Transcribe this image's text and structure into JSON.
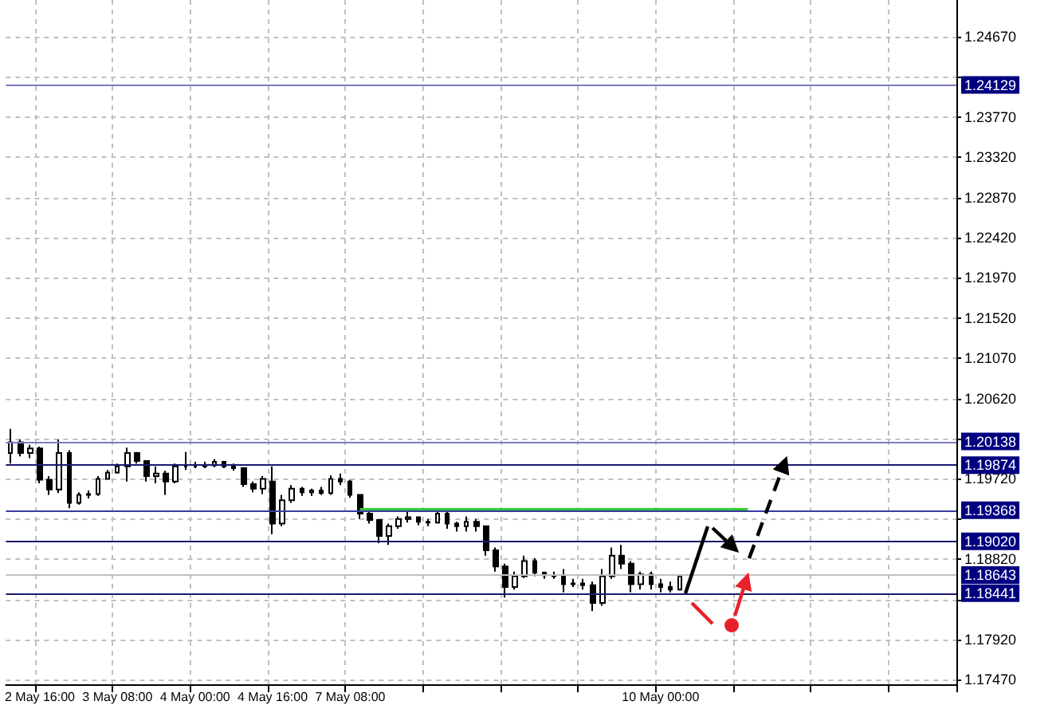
{
  "chart_data": {
    "type": "candlestick",
    "categories": [
      null,
      null,
      null,
      "2 May 16:00",
      null,
      null,
      null,
      null,
      null,
      null,
      null,
      "3 May 08:00",
      null,
      null,
      null,
      null,
      null,
      null,
      null,
      "4 May 00:00",
      null,
      null,
      null,
      null,
      null,
      null,
      null,
      "4 May 16:00",
      null,
      null,
      null,
      null,
      null,
      null,
      null,
      "7 May 08:00",
      null,
      null,
      null,
      null,
      null,
      null,
      null,
      null,
      null,
      null,
      null,
      null,
      null,
      null,
      null,
      null,
      null,
      null,
      null,
      null,
      null,
      null,
      null,
      null,
      null,
      null,
      null,
      null,
      null,
      null,
      null,
      "10 May 00:00",
      null,
      null,
      null,
      null,
      null,
      null,
      null,
      null,
      null,
      null,
      null,
      null,
      null,
      null,
      null,
      null,
      null,
      null,
      null,
      null,
      null,
      null,
      null,
      null,
      null,
      null,
      null,
      null,
      null,
      null
    ],
    "series": [
      {
        "type": "candlestick",
        "color": "#000000",
        "ohlc": [
          [
            1.2001,
            1.2028,
            1.1989,
            1.2013
          ],
          [
            1.2013,
            1.2016,
            1.1997,
            1.2001
          ],
          [
            1.2001,
            1.201,
            1.1995,
            1.2006
          ],
          [
            1.2006,
            1.2008,
            1.1967,
            1.1971
          ],
          [
            1.1971,
            1.1975,
            1.1954,
            1.196
          ],
          [
            1.196,
            1.2016,
            1.1956,
            1.2001
          ],
          [
            1.2001,
            1.2004,
            1.1939,
            1.1945
          ],
          [
            1.1945,
            1.1957,
            1.1943,
            1.1954
          ],
          [
            1.1954,
            1.1959,
            1.195,
            1.1955
          ],
          [
            1.1955,
            1.1975,
            1.1953,
            1.1972
          ],
          [
            1.1972,
            1.1982,
            1.1971,
            1.1979
          ],
          [
            1.1979,
            1.1989,
            1.1978,
            1.1986
          ],
          [
            1.1986,
            1.2007,
            1.1969,
            1.2001
          ],
          [
            1.2001,
            1.2002,
            1.1989,
            1.1992
          ],
          [
            1.1992,
            1.1992,
            1.1969,
            1.1975
          ],
          [
            1.1975,
            1.1986,
            1.1967,
            1.1978
          ],
          [
            1.1978,
            1.1981,
            1.1954,
            1.1969
          ],
          [
            1.1969,
            1.1989,
            1.1967,
            1.1986
          ],
          [
            1.1986,
            1.2002,
            1.1982,
            1.1986
          ],
          [
            1.1986,
            1.1991,
            1.1984,
            1.1986
          ],
          [
            1.1986,
            1.1991,
            1.1984,
            1.1987
          ],
          [
            1.1987,
            1.1994,
            1.1985,
            1.1991
          ],
          [
            1.1991,
            1.1992,
            1.1984,
            1.1986
          ],
          [
            1.1986,
            1.1989,
            1.1981,
            1.1984
          ],
          [
            1.1984,
            1.1985,
            1.1963,
            1.1966
          ],
          [
            1.1966,
            1.1969,
            1.1957,
            1.1961
          ],
          [
            1.1961,
            1.1975,
            1.1955,
            1.1972
          ],
          [
            1.1969,
            1.1986,
            1.191,
            1.1922
          ],
          [
            1.1922,
            1.1954,
            1.1919,
            1.1948
          ],
          [
            1.1948,
            1.1965,
            1.1945,
            1.1961
          ],
          [
            1.1961,
            1.1963,
            1.1953,
            1.1957
          ],
          [
            1.1957,
            1.1961,
            1.1953,
            1.1959
          ],
          [
            1.1959,
            1.1963,
            1.1954,
            1.1956
          ],
          [
            1.1956,
            1.1976,
            1.1954,
            1.1972
          ],
          [
            1.1972,
            1.1978,
            1.1965,
            1.1969
          ],
          [
            1.1969,
            1.1971,
            1.1951,
            1.1954
          ],
          [
            1.1954,
            1.1955,
            1.1927,
            1.1933
          ],
          [
            1.1933,
            1.1936,
            1.1922,
            1.1926
          ],
          [
            1.1926,
            1.1927,
            1.19,
            1.1908
          ],
          [
            1.1908,
            1.1922,
            1.1898,
            1.1919
          ],
          [
            1.1919,
            1.193,
            1.1916,
            1.1927
          ],
          [
            1.1927,
            1.1936,
            1.1923,
            1.1929
          ],
          [
            1.1929,
            1.193,
            1.192,
            1.1924
          ],
          [
            1.1924,
            1.1927,
            1.1919,
            1.1923
          ],
          [
            1.1923,
            1.1937,
            1.1922,
            1.1933
          ],
          [
            1.1933,
            1.1936,
            1.1916,
            1.1922
          ],
          [
            1.1922,
            1.1924,
            1.1913,
            1.1919
          ],
          [
            1.1919,
            1.193,
            1.1913,
            1.1924
          ],
          [
            1.1924,
            1.1927,
            1.1913,
            1.1919
          ],
          [
            1.1919,
            1.1919,
            1.1886,
            1.1892
          ],
          [
            1.1892,
            1.1895,
            1.1868,
            1.1874
          ],
          [
            1.1874,
            1.1877,
            1.1839,
            1.1851
          ],
          [
            1.1851,
            1.1868,
            1.1848,
            1.1863
          ],
          [
            1.1863,
            1.1886,
            1.1861,
            1.188
          ],
          [
            1.188,
            1.1883,
            1.1863,
            1.1867
          ],
          [
            1.1867,
            1.1868,
            1.186,
            1.1864
          ],
          [
            1.1864,
            1.1868,
            1.186,
            1.1863
          ],
          [
            1.1863,
            1.1871,
            1.1845,
            1.1854
          ],
          [
            1.1854,
            1.186,
            1.1851,
            1.1855
          ],
          [
            1.1855,
            1.186,
            1.1848,
            1.1853
          ],
          [
            1.1853,
            1.1857,
            1.1824,
            1.1833
          ],
          [
            1.1833,
            1.1871,
            1.183,
            1.1863
          ],
          [
            1.1863,
            1.1895,
            1.186,
            1.1886
          ],
          [
            1.1886,
            1.1898,
            1.1871,
            1.1877
          ],
          [
            1.1877,
            1.188,
            1.1845,
            1.1854
          ],
          [
            1.1854,
            1.1868,
            1.1848,
            1.1865
          ],
          [
            1.1865,
            1.1868,
            1.1848,
            1.1854
          ],
          [
            1.1854,
            1.186,
            1.1845,
            1.1851
          ],
          [
            1.1851,
            1.1857,
            1.1845,
            1.1848
          ],
          [
            1.1848,
            1.1865,
            1.1847,
            1.1863
          ],
          null,
          null,
          null,
          null,
          null,
          null,
          null,
          null,
          null,
          null,
          null,
          null,
          null,
          null,
          null,
          null,
          null,
          null,
          null,
          null,
          null,
          null,
          null,
          null,
          null,
          null,
          null,
          null
        ]
      },
      {
        "type": "line",
        "color": "#33cc33",
        "values": [
          null,
          null,
          null,
          null,
          null,
          null,
          null,
          null,
          null,
          null,
          null,
          null,
          null,
          null,
          null,
          null,
          null,
          null,
          null,
          null,
          null,
          null,
          null,
          null,
          null,
          null,
          null,
          null,
          null,
          null,
          null,
          null,
          null,
          null,
          null,
          null,
          1.1937,
          1.1937,
          1.1937,
          1.1937,
          1.1937,
          1.1937,
          1.1937,
          1.1937,
          1.1937,
          1.1937,
          1.1937,
          1.1937,
          1.1937,
          1.1937,
          1.1937,
          1.1937,
          1.1937,
          1.1937,
          1.1937,
          1.1937,
          1.1937,
          1.1937,
          1.1937,
          1.1937,
          1.1937,
          1.1937,
          1.1937,
          1.1937,
          1.1937,
          1.1937,
          1.1937,
          1.1937,
          1.1937,
          1.1937,
          1.1937,
          1.1937,
          1.1937,
          1.1937,
          1.1937,
          1.1937,
          1.1937,
          null,
          null,
          null,
          null,
          null,
          null,
          null,
          null,
          null,
          null,
          null,
          null,
          null,
          null,
          null,
          null,
          null,
          null,
          null,
          null,
          null
        ]
      }
    ],
    "ylim": [
      1.1742,
      1.2508
    ],
    "yticks": [
      {
        "value": 1.1747,
        "label": "1.17470"
      },
      {
        "value": 1.1792,
        "label": "1.17920"
      },
      {
        "value": 1.1837,
        "label": null
      },
      {
        "value": 1.1882,
        "label": "1.18820"
      },
      {
        "value": 1.1927,
        "label": null
      },
      {
        "value": 1.1972,
        "label": "1.19720"
      },
      {
        "value": 1.2017,
        "label": null
      },
      {
        "value": 1.2062,
        "label": "1.20620"
      },
      {
        "value": 1.2107,
        "label": "1.21070"
      },
      {
        "value": 1.2152,
        "label": "1.21520"
      },
      {
        "value": 1.2197,
        "label": "1.21970"
      },
      {
        "value": 1.2242,
        "label": "1.22420"
      },
      {
        "value": 1.2287,
        "label": "1.22870"
      },
      {
        "value": 1.2332,
        "label": "1.23320"
      },
      {
        "value": 1.2377,
        "label": "1.23770"
      },
      {
        "value": 1.2422,
        "label": null
      },
      {
        "value": 1.2467,
        "label": "1.24670"
      }
    ],
    "ref_lines": [
      {
        "axis": "y",
        "value": 1.24129,
        "label": "1.24129",
        "color": "#7b7bc4"
      },
      {
        "axis": "y",
        "value": 1.20138,
        "label": "1.20138",
        "color": "#7b7bc4"
      },
      {
        "axis": "y",
        "value": 1.19874,
        "label": "1.19874",
        "color": "#1a1a6e"
      },
      {
        "axis": "y",
        "value": 1.19368,
        "label": "1.19368",
        "color": "#3a3aa0"
      },
      {
        "axis": "y",
        "value": 1.1902,
        "label": "1.19020",
        "color": "#1a1a6e"
      },
      {
        "axis": "y",
        "value": 1.18643,
        "label": "1.18643",
        "color": "#c0c0c0"
      },
      {
        "axis": "y",
        "value": 1.18441,
        "label": "1.18441",
        "color": "#1a1a6e"
      }
    ],
    "grid": true,
    "marker": "none"
  }
}
